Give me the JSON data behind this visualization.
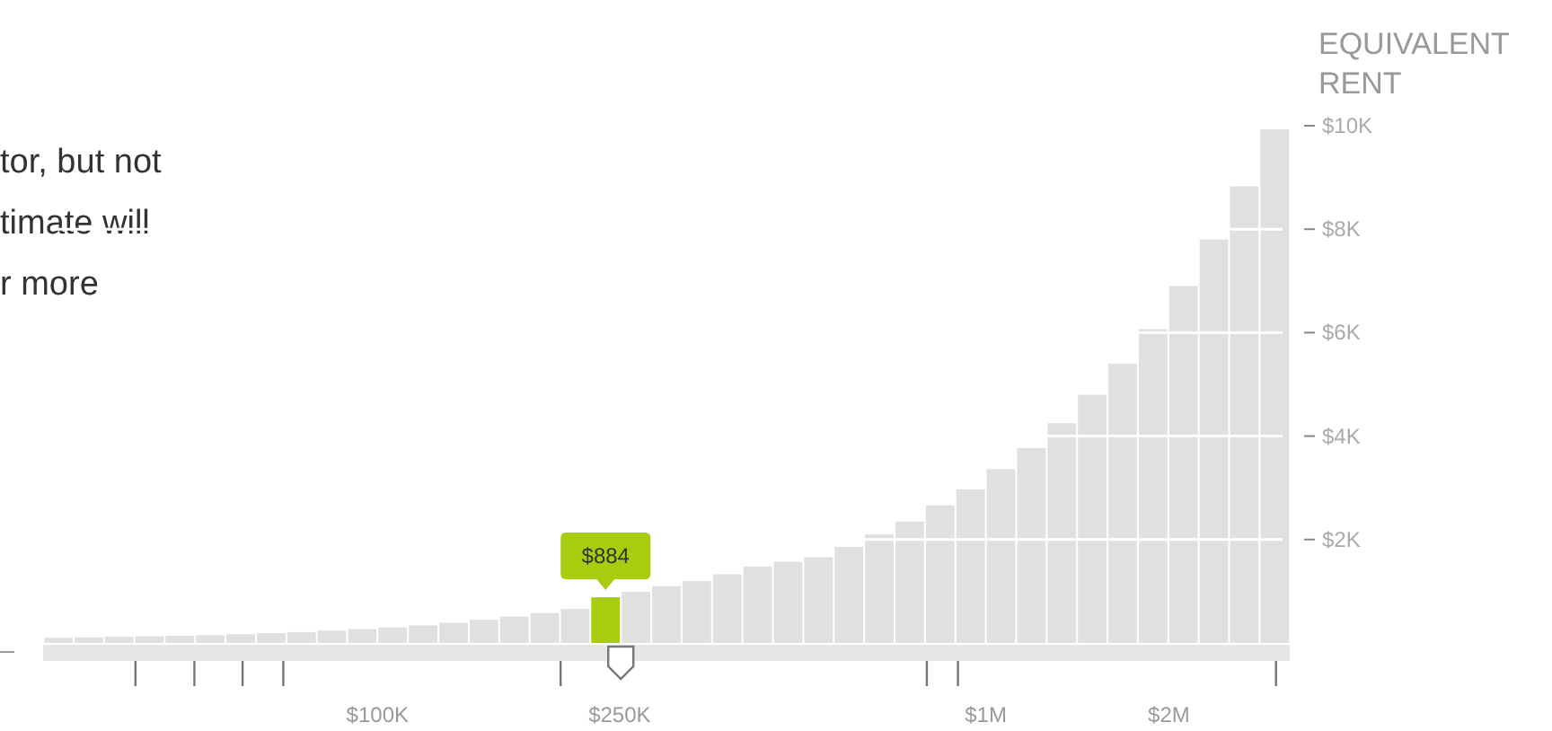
{
  "chart_data": {
    "type": "bar",
    "ylabel": "EQUIVALENT RENT",
    "annotations": [
      "tor, but not",
      "timate will",
      "r more"
    ],
    "x": [
      29900,
      33500,
      37600,
      42200,
      47300,
      53100,
      59600,
      66900,
      75000,
      84200,
      94400,
      105900,
      118900,
      133400,
      149600,
      167900,
      188400,
      211300,
      237100,
      266100,
      298500,
      335000,
      375800,
      421700,
      473200,
      530900,
      595700,
      668300,
      749900,
      841400,
      944100,
      1059300,
      1188500,
      1333500,
      1496200,
      1678800,
      1883600,
      2113500,
      2371400,
      2660700,
      2985400
    ],
    "values": [
      100,
      110,
      120,
      130,
      140,
      150,
      170,
      190,
      210,
      240,
      270,
      300,
      340,
      390,
      450,
      510,
      580,
      660,
      884,
      990,
      1100,
      1200,
      1330,
      1480,
      1570,
      1660,
      1860,
      2100,
      2350,
      2660,
      2970,
      3360,
      3770,
      4250,
      4800,
      5400,
      6070,
      6900,
      7800,
      8830,
      9930
    ],
    "value_labels": [
      null,
      null,
      null,
      null,
      null,
      null,
      null,
      null,
      null,
      null,
      null,
      null,
      null,
      null,
      null,
      null,
      null,
      null,
      "$884",
      null,
      null,
      null,
      null,
      null,
      null,
      null,
      null,
      null,
      null,
      null,
      null,
      null,
      null,
      null,
      null,
      null,
      null,
      null,
      null,
      null,
      null
    ],
    "colors": [
      "#e0e0e0",
      "#e0e0e0",
      "#e0e0e0",
      "#e0e0e0",
      "#e0e0e0",
      "#e0e0e0",
      "#e0e0e0",
      "#e0e0e0",
      "#e0e0e0",
      "#e0e0e0",
      "#e0e0e0",
      "#e0e0e0",
      "#e0e0e0",
      "#e0e0e0",
      "#e0e0e0",
      "#e0e0e0",
      "#e0e0e0",
      "#e0e0e0",
      "#a8cc10",
      "#e0e0e0",
      "#e0e0e0",
      "#e0e0e0",
      "#e0e0e0",
      "#e0e0e0",
      "#e0e0e0",
      "#e0e0e0",
      "#e0e0e0",
      "#e0e0e0",
      "#e0e0e0",
      "#e0e0e0",
      "#e0e0e0",
      "#e0e0e0",
      "#e0e0e0",
      "#e0e0e0",
      "#e0e0e0",
      "#e0e0e0",
      "#e0e0e0",
      "#e0e0e0",
      "#e0e0e0",
      "#e0e0e0",
      "#e0e0e0"
    ],
    "log": "x",
    "xlim": [
      28200,
      3160000
    ],
    "xticks": [
      {
        "value": 40000,
        "label": null
      },
      {
        "value": 50000,
        "label": null
      },
      {
        "value": 60000,
        "label": null
      },
      {
        "value": 70000,
        "label": null
      },
      {
        "value": 100000,
        "label": "$100K"
      },
      {
        "value": 200000,
        "label": null
      },
      {
        "value": 250000,
        "label": "$250K"
      },
      {
        "value": 800000,
        "label": null
      },
      {
        "value": 900000,
        "label": null
      },
      {
        "value": 1000000,
        "label": "$1M"
      },
      {
        "value": 2000000,
        "label": "$2M"
      },
      {
        "value": 3000000,
        "label": null
      }
    ],
    "ylim": [
      0,
      10000
    ],
    "yticks": [
      {
        "value": 2000,
        "label": "$2K"
      },
      {
        "value": 4000,
        "label": "$4K"
      },
      {
        "value": 6000,
        "label": "$6K"
      },
      {
        "value": 8000,
        "label": "$8K"
      },
      {
        "value": 10000,
        "label": "$10K"
      }
    ],
    "grid": "y"
  }
}
